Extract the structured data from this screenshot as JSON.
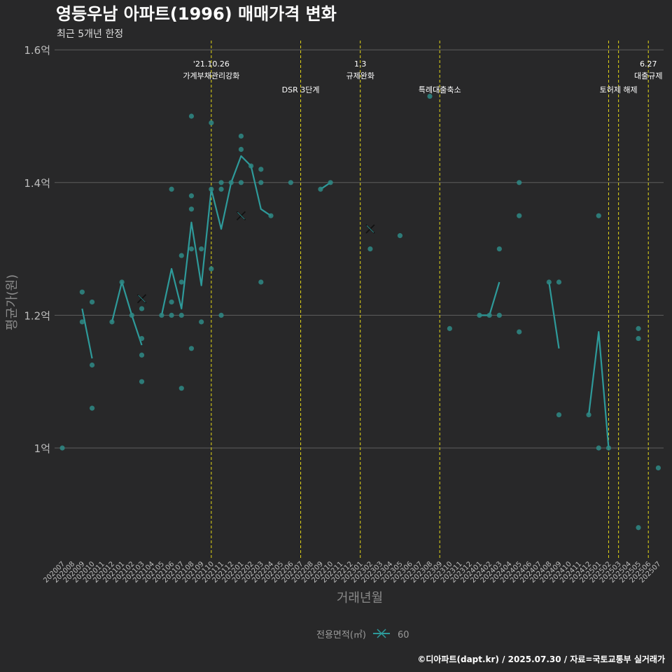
{
  "chart_data": {
    "type": "line",
    "title": "영등우남 아파트(1996) 매매가격 변화",
    "subtitle": "최근 5개년 한정",
    "xlabel": "거래년월",
    "ylabel": "평균가(원)",
    "caption": "©디아파트(dapt.kr) / 2025.07.30 / 자료=국토교통부 실거래가",
    "legend": {
      "title": "전용면적(㎡)",
      "placement": "bottom",
      "entries": [
        "60"
      ]
    },
    "colors": {
      "series": "#2e9a9a",
      "point": "#2e8a86",
      "event_line": "#e5d817",
      "grid": "#5e5e5e",
      "background": "#282829"
    },
    "ylim": [
      0.83,
      1.62
    ],
    "yticks": [
      {
        "value": 1.0,
        "label": "1억"
      },
      {
        "value": 1.2,
        "label": "1.2억"
      },
      {
        "value": 1.4,
        "label": "1.4억"
      },
      {
        "value": 1.6,
        "label": "1.6억"
      }
    ],
    "x_categories": [
      "202007",
      "202008",
      "202009",
      "202010",
      "202011",
      "202012",
      "202101",
      "202102",
      "202103",
      "202104",
      "202105",
      "202106",
      "202107",
      "202108",
      "202109",
      "202110",
      "202111",
      "202112",
      "202201",
      "202202",
      "202203",
      "202204",
      "202205",
      "202206",
      "202207",
      "202208",
      "202209",
      "202210",
      "202211",
      "202212",
      "202301",
      "202302",
      "202303",
      "202304",
      "202305",
      "202306",
      "202307",
      "202308",
      "202309",
      "202310",
      "202311",
      "202312",
      "202401",
      "202402",
      "202403",
      "202404",
      "202405",
      "202406",
      "202407",
      "202408",
      "202409",
      "202410",
      "202411",
      "202412",
      "202501",
      "202502",
      "202503",
      "202504",
      "202505",
      "202506",
      "202507"
    ],
    "grid": true,
    "series": [
      {
        "name": "60",
        "segments": [
          [
            [
              "202009",
              1.21
            ],
            [
              "202010",
              1.135
            ]
          ],
          [
            [
              "202012",
              1.19
            ],
            [
              "202101",
              1.25
            ],
            [
              "202102",
              1.2
            ],
            [
              "202103",
              1.155
            ]
          ],
          [
            [
              "202105",
              1.2
            ],
            [
              "202106",
              1.27
            ],
            [
              "202107",
              1.21
            ],
            [
              "202108",
              1.34
            ],
            [
              "202109",
              1.245
            ],
            [
              "202110",
              1.39
            ],
            [
              "202111",
              1.33
            ],
            [
              "202112",
              1.4
            ],
            [
              "202201",
              1.44
            ],
            [
              "202202",
              1.425
            ],
            [
              "202203",
              1.36
            ],
            [
              "202204",
              1.35
            ]
          ],
          [
            [
              "202209",
              1.39
            ],
            [
              "202210",
              1.4
            ]
          ],
          [
            [
              "202401",
              1.2
            ],
            [
              "202402",
              1.2
            ],
            [
              "202403",
              1.25
            ]
          ],
          [
            [
              "202408",
              1.25
            ],
            [
              "202409",
              1.15
            ]
          ],
          [
            [
              "202412",
              1.05
            ],
            [
              "202501",
              1.175
            ],
            [
              "202502",
              1.0
            ]
          ]
        ],
        "points": [
          [
            "202007",
            1.0
          ],
          [
            "202009",
            1.235
          ],
          [
            "202009",
            1.19
          ],
          [
            "202010",
            1.22
          ],
          [
            "202010",
            1.125
          ],
          [
            "202010",
            1.06
          ],
          [
            "202012",
            1.19
          ],
          [
            "202101",
            1.25
          ],
          [
            "202102",
            1.2
          ],
          [
            "202103",
            1.21
          ],
          [
            "202103",
            1.165
          ],
          [
            "202103",
            1.14
          ],
          [
            "202103",
            1.1
          ],
          [
            "202105",
            1.2
          ],
          [
            "202106",
            1.39
          ],
          [
            "202106",
            1.22
          ],
          [
            "202106",
            1.2
          ],
          [
            "202107",
            1.29
          ],
          [
            "202107",
            1.25
          ],
          [
            "202107",
            1.2
          ],
          [
            "202107",
            1.09
          ],
          [
            "202108",
            1.5
          ],
          [
            "202108",
            1.38
          ],
          [
            "202108",
            1.36
          ],
          [
            "202108",
            1.3
          ],
          [
            "202108",
            1.15
          ],
          [
            "202109",
            1.3
          ],
          [
            "202109",
            1.19
          ],
          [
            "202110",
            1.49
          ],
          [
            "202110",
            1.39
          ],
          [
            "202110",
            1.27
          ],
          [
            "202111",
            1.4
          ],
          [
            "202111",
            1.39
          ],
          [
            "202111",
            1.2
          ],
          [
            "202112",
            1.4
          ],
          [
            "202201",
            1.47
          ],
          [
            "202201",
            1.45
          ],
          [
            "202201",
            1.4
          ],
          [
            "202202",
            1.425
          ],
          [
            "202203",
            1.42
          ],
          [
            "202203",
            1.4
          ],
          [
            "202203",
            1.25
          ],
          [
            "202204",
            1.35
          ],
          [
            "202206",
            1.4
          ],
          [
            "202209",
            1.39
          ],
          [
            "202210",
            1.4
          ],
          [
            "202302",
            1.3
          ],
          [
            "202305",
            1.32
          ],
          [
            "202308",
            1.53
          ],
          [
            "202310",
            1.18
          ],
          [
            "202401",
            1.2
          ],
          [
            "202402",
            1.2
          ],
          [
            "202403",
            1.3
          ],
          [
            "202403",
            1.2
          ],
          [
            "202405",
            1.4
          ],
          [
            "202405",
            1.35
          ],
          [
            "202405",
            1.175
          ],
          [
            "202408",
            1.25
          ],
          [
            "202409",
            1.25
          ],
          [
            "202409",
            1.05
          ],
          [
            "202412",
            1.05
          ],
          [
            "202501",
            1.35
          ],
          [
            "202501",
            1.0
          ],
          [
            "202502",
            1.0
          ],
          [
            "202505",
            1.18
          ],
          [
            "202505",
            1.165
          ],
          [
            "202505",
            0.88
          ],
          [
            "202507",
            0.97
          ]
        ],
        "averages": [
          [
            "202103",
            1.225
          ],
          [
            "202201",
            1.35
          ],
          [
            "202302",
            1.33
          ]
        ]
      }
    ],
    "events": [
      {
        "x": "202110",
        "lines": [
          "'21.10.26",
          "가계부채관리강화"
        ]
      },
      {
        "x": "202207",
        "lines": [
          "DSR 3단계"
        ]
      },
      {
        "x": "202301",
        "lines": [
          "1.3",
          "규제완화"
        ]
      },
      {
        "x": "202309",
        "lines": [
          "특례대출축소"
        ]
      },
      {
        "x": "202502",
        "lines": []
      },
      {
        "x": "202503",
        "lines": [
          "토허제 해제"
        ]
      },
      {
        "x": "202506",
        "lines": [
          "6.27",
          "대출규제"
        ]
      }
    ]
  }
}
